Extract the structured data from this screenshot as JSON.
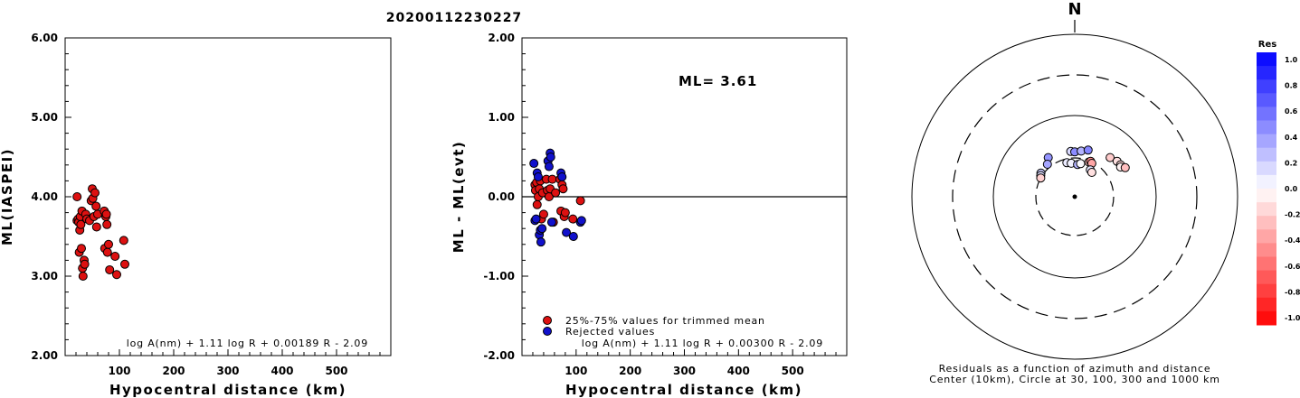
{
  "title": "20200112230227",
  "colors": {
    "red": "#dd1111",
    "blue": "#1111cc"
  },
  "chart_data": [
    {
      "type": "scatter",
      "xlabel": "Hypocentral distance (km)",
      "ylabel": "ML(IASPEI)",
      "xlim": [
        0,
        600
      ],
      "ylim": [
        2.0,
        6.0
      ],
      "x_ticks": [
        "100",
        "200",
        "300",
        "400",
        "500"
      ],
      "y_ticks": [
        "2.00",
        "3.00",
        "4.00",
        "5.00",
        "6.00"
      ],
      "formula": "log A(nm) + 1.11 log R + 0.00189 R - 2.09",
      "series": [
        {
          "color": "red",
          "points": [
            [
              22,
              4.0
            ],
            [
              22,
              3.7
            ],
            [
              24,
              3.72
            ],
            [
              25,
              3.68
            ],
            [
              26,
              3.3
            ],
            [
              27,
              3.58
            ],
            [
              28,
              3.75
            ],
            [
              29,
              3.65
            ],
            [
              30,
              3.35
            ],
            [
              31,
              3.82
            ],
            [
              32,
              3.1
            ],
            [
              33,
              3.0
            ],
            [
              35,
              3.2
            ],
            [
              36,
              3.15
            ],
            [
              38,
              3.78
            ],
            [
              40,
              3.72
            ],
            [
              45,
              3.7
            ],
            [
              48,
              3.95
            ],
            [
              50,
              4.1
            ],
            [
              51,
              3.98
            ],
            [
              53,
              3.75
            ],
            [
              55,
              4.05
            ],
            [
              57,
              3.88
            ],
            [
              58,
              3.62
            ],
            [
              60,
              3.78
            ],
            [
              72,
              3.82
            ],
            [
              73,
              3.35
            ],
            [
              75,
              3.75
            ],
            [
              76,
              3.78
            ],
            [
              77,
              3.65
            ],
            [
              78,
              3.3
            ],
            [
              80,
              3.4
            ],
            [
              82,
              3.08
            ],
            [
              92,
              3.25
            ],
            [
              95,
              3.02
            ],
            [
              108,
              3.45
            ],
            [
              110,
              3.15
            ]
          ]
        }
      ]
    },
    {
      "type": "scatter",
      "xlabel": "Hypocentral distance (km)",
      "ylabel": "ML - ML(evt)",
      "xlim": [
        0,
        600
      ],
      "ylim": [
        -2.0,
        2.0
      ],
      "x_ticks": [
        "100",
        "200",
        "300",
        "400",
        "500"
      ],
      "y_ticks": [
        "-2.00",
        "-1.00",
        "0.00",
        "1.00",
        "2.00"
      ],
      "zero_line": 0.0,
      "annotation": "ML= 3.61",
      "formula": "log A(nm) + 1.11 log R + 0.00300 R - 2.09",
      "legend": [
        {
          "color": "red",
          "label": "25%-75% values for trimmed mean"
        },
        {
          "color": "blue",
          "label": "Rejected values"
        }
      ],
      "series": [
        {
          "color": "red",
          "points": [
            [
              24,
              0.15
            ],
            [
              25,
              0.08
            ],
            [
              27,
              0.18
            ],
            [
              28,
              -0.1
            ],
            [
              30,
              0.0
            ],
            [
              32,
              0.1
            ],
            [
              34,
              0.2
            ],
            [
              36,
              -0.28
            ],
            [
              38,
              0.05
            ],
            [
              40,
              -0.22
            ],
            [
              45,
              0.22
            ],
            [
              47,
              0.08
            ],
            [
              50,
              0.0
            ],
            [
              52,
              0.1
            ],
            [
              56,
              0.22
            ],
            [
              58,
              -0.32
            ],
            [
              62,
              0.05
            ],
            [
              70,
              0.22
            ],
            [
              72,
              -0.18
            ],
            [
              74,
              0.15
            ],
            [
              76,
              0.1
            ],
            [
              78,
              -0.25
            ],
            [
              80,
              -0.2
            ],
            [
              94,
              -0.28
            ],
            [
              108,
              -0.05
            ]
          ]
        },
        {
          "color": "blue",
          "points": [
            [
              22,
              0.42
            ],
            [
              24,
              -0.3
            ],
            [
              26,
              -0.28
            ],
            [
              28,
              0.3
            ],
            [
              30,
              0.25
            ],
            [
              32,
              -0.48
            ],
            [
              34,
              -0.42
            ],
            [
              35,
              -0.57
            ],
            [
              37,
              -0.4
            ],
            [
              48,
              0.45
            ],
            [
              50,
              0.38
            ],
            [
              52,
              0.55
            ],
            [
              53,
              0.5
            ],
            [
              55,
              -0.32
            ],
            [
              72,
              0.3
            ],
            [
              74,
              0.25
            ],
            [
              82,
              -0.45
            ],
            [
              95,
              -0.5
            ],
            [
              108,
              -0.32
            ],
            [
              110,
              -0.3
            ]
          ]
        }
      ]
    },
    {
      "type": "scatter",
      "subtype": "polar-residual-map",
      "north_label": "N",
      "caption_line1": "Residuals as a function of azimuth and distance",
      "caption_line2": "Center (10km), Circle at 30, 100, 300 and 1000 km",
      "rings_km": [
        30,
        100,
        300,
        1000
      ],
      "colorbar": {
        "title": "Res",
        "range": [
          -1.0,
          1.0
        ],
        "labels": [
          "1.0",
          "0.8",
          "0.6",
          "0.4",
          "0.2",
          "0.0",
          "-0.2",
          "-0.4",
          "-0.6",
          "-0.8",
          "-1.0"
        ]
      },
      "stations": [
        {
          "az": -34,
          "dist_km": 44,
          "res": 0.42
        },
        {
          "az": -40,
          "dist_km": 36,
          "res": 0.35
        },
        {
          "az": -55,
          "dist_km": 34,
          "res": 0.2
        },
        {
          "az": -58,
          "dist_km": 32,
          "res": 0.12
        },
        {
          "az": -61,
          "dist_km": 30,
          "res": -0.18
        },
        {
          "az": -5,
          "dist_km": 41,
          "res": 0.15
        },
        {
          "az": 0,
          "dist_km": 40,
          "res": 0.45
        },
        {
          "az": 8,
          "dist_km": 42,
          "res": 0.3
        },
        {
          "az": 16,
          "dist_km": 46,
          "res": 0.48
        },
        {
          "az": -13,
          "dist_km": 27,
          "res": 0.08
        },
        {
          "az": -6,
          "dist_km": 26,
          "res": 0.05
        },
        {
          "az": 5,
          "dist_km": 25,
          "res": 0.3
        },
        {
          "az": 10,
          "dist_km": 26,
          "res": 0.02
        },
        {
          "az": 22,
          "dist_km": 29,
          "res": -0.2
        },
        {
          "az": 24,
          "dist_km": 30,
          "res": -0.45
        },
        {
          "az": 27,
          "dist_km": 29,
          "res": -0.35
        },
        {
          "az": 30,
          "dist_km": 24,
          "res": 0.1
        },
        {
          "az": 35,
          "dist_km": 23,
          "res": -0.12
        },
        {
          "az": 42,
          "dist_km": 53,
          "res": -0.2
        },
        {
          "az": 50,
          "dist_km": 57,
          "res": -0.12
        },
        {
          "az": 55,
          "dist_km": 58,
          "res": -0.15
        },
        {
          "az": 57,
          "dist_km": 56,
          "res": -0.05
        },
        {
          "az": 60,
          "dist_km": 62,
          "res": -0.25
        }
      ]
    }
  ]
}
